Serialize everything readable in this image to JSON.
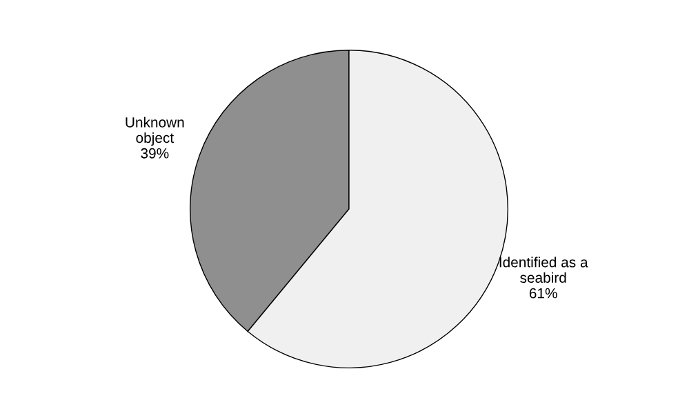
{
  "chart_data": {
    "type": "pie",
    "categories": [
      "Unknown\nobject",
      "Identified as a\nseabird"
    ],
    "values": [
      39,
      61
    ],
    "value_labels": [
      "39%",
      "61%"
    ],
    "colors": [
      "#8f8f8f",
      "#f0f0f0"
    ],
    "legend": false
  }
}
